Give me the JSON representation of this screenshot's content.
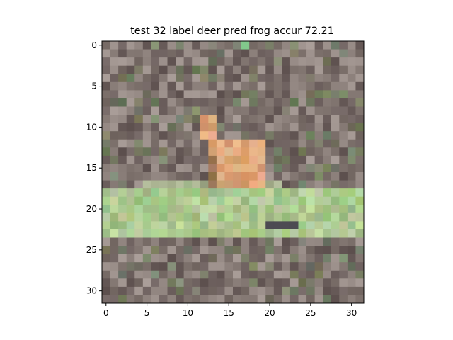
{
  "figure": {
    "title": "test 32 label deer pred frog accur 72.21"
  },
  "image": {
    "description_size": "32x32 pixel CIFAR-style thumbnail",
    "palette": {
      "ground_dark": "#6b5e5c",
      "ground_mid": "#7d716c",
      "ground_light": "#9b8f8a",
      "leaf_green": "#6f8a5e",
      "grass_bright": "#c8e6a8",
      "grass_mid": "#a9d38a",
      "deer_orange": "#d39a6a",
      "deer_light": "#e8b487",
      "shadow": "#4d4b52"
    }
  },
  "axes": {
    "x_ticks": [
      "0",
      "5",
      "10",
      "15",
      "20",
      "25",
      "30"
    ],
    "y_ticks": [
      "0",
      "5",
      "10",
      "15",
      "20",
      "25",
      "30"
    ],
    "x_tick_values": [
      0,
      5,
      10,
      15,
      20,
      25,
      30
    ],
    "y_tick_values": [
      0,
      5,
      10,
      15,
      20,
      25,
      30
    ],
    "xlim": [
      -0.5,
      31.5
    ],
    "ylim": [
      31.5,
      -0.5
    ]
  }
}
